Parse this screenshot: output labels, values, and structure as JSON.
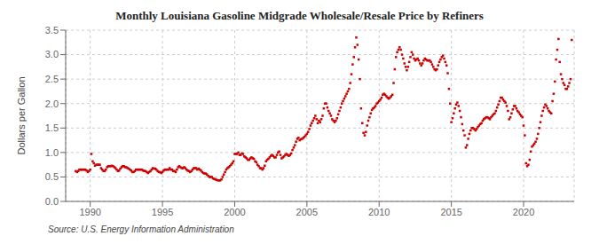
{
  "chart_data": {
    "type": "scatter",
    "title": "Monthly Louisiana Gasoline Midgrade Wholesale/Resale Price by Refiners",
    "y_label": "Dollars per Gallon",
    "annotations": [
      "Source: U.S. Energy Information Administration"
    ],
    "color": "#cc0000",
    "marker": "square",
    "grid": true,
    "xlim": [
      1988.3,
      2023.5
    ],
    "ylim": [
      0.0,
      3.5
    ],
    "xticks": [
      1990,
      1995,
      2000,
      2005,
      2010,
      2015,
      2020
    ],
    "yticks": [
      {
        "value": 0.0,
        "label": "0.0"
      },
      0.5,
      {
        "value": 1.0,
        "label": "1.0"
      },
      1.5,
      {
        "value": 2.0,
        "label": "2.0"
      },
      2.5,
      {
        "value": 3.0,
        "label": "3.0"
      },
      3.5
    ],
    "x": [
      1989.0,
      1989.083,
      1989.167,
      1989.25,
      1989.333,
      1989.417,
      1989.5,
      1989.583,
      1989.667,
      1989.75,
      1989.833,
      1989.917,
      1990.0,
      1990.083,
      1990.167,
      1990.25,
      1990.333,
      1990.417,
      1990.5,
      1990.583,
      1990.667,
      1990.75,
      1990.833,
      1990.917,
      1991.0,
      1991.083,
      1991.167,
      1991.25,
      1991.333,
      1991.417,
      1991.5,
      1991.583,
      1991.667,
      1991.75,
      1991.833,
      1991.917,
      1992.0,
      1992.083,
      1992.167,
      1992.25,
      1992.333,
      1992.417,
      1992.5,
      1992.583,
      1992.667,
      1992.75,
      1992.833,
      1992.917,
      1993.0,
      1993.083,
      1993.167,
      1993.25,
      1993.333,
      1993.417,
      1993.5,
      1993.583,
      1993.667,
      1993.75,
      1993.833,
      1993.917,
      1994.0,
      1994.083,
      1994.167,
      1994.25,
      1994.333,
      1994.417,
      1994.5,
      1994.583,
      1994.667,
      1994.75,
      1994.833,
      1994.917,
      1995.0,
      1995.083,
      1995.167,
      1995.25,
      1995.333,
      1995.417,
      1995.5,
      1995.583,
      1995.667,
      1995.75,
      1995.833,
      1995.917,
      1996.0,
      1996.083,
      1996.167,
      1996.25,
      1996.333,
      1996.417,
      1996.5,
      1996.583,
      1996.667,
      1996.75,
      1996.833,
      1996.917,
      1997.0,
      1997.083,
      1997.167,
      1997.25,
      1997.333,
      1997.417,
      1997.5,
      1997.583,
      1997.667,
      1997.75,
      1997.833,
      1997.917,
      1998.0,
      1998.083,
      1998.167,
      1998.25,
      1998.333,
      1998.417,
      1998.5,
      1998.583,
      1998.667,
      1998.75,
      1998.833,
      1998.917,
      1999.0,
      1999.083,
      1999.167,
      1999.25,
      1999.333,
      1999.417,
      1999.5,
      1999.583,
      1999.667,
      1999.75,
      1999.833,
      1999.917,
      2000.0,
      2000.083,
      2000.167,
      2000.25,
      2000.333,
      2000.417,
      2000.5,
      2000.583,
      2000.667,
      2000.75,
      2000.833,
      2000.917,
      2001.0,
      2001.083,
      2001.167,
      2001.25,
      2001.333,
      2001.417,
      2001.5,
      2001.583,
      2001.667,
      2001.75,
      2001.833,
      2001.917,
      2002.0,
      2002.083,
      2002.167,
      2002.25,
      2002.333,
      2002.417,
      2002.5,
      2002.583,
      2002.667,
      2002.75,
      2002.833,
      2002.917,
      2003.0,
      2003.083,
      2003.167,
      2003.25,
      2003.333,
      2003.417,
      2003.5,
      2003.583,
      2003.667,
      2003.75,
      2003.833,
      2003.917,
      2004.0,
      2004.083,
      2004.167,
      2004.25,
      2004.333,
      2004.417,
      2004.5,
      2004.583,
      2004.667,
      2004.75,
      2004.833,
      2004.917,
      2005.0,
      2005.083,
      2005.167,
      2005.25,
      2005.333,
      2005.417,
      2005.5,
      2005.583,
      2005.667,
      2005.75,
      2005.833,
      2005.917,
      2006.0,
      2006.083,
      2006.167,
      2006.25,
      2006.333,
      2006.417,
      2006.5,
      2006.583,
      2006.667,
      2006.75,
      2006.833,
      2006.917,
      2007.0,
      2007.083,
      2007.167,
      2007.25,
      2007.333,
      2007.417,
      2007.5,
      2007.583,
      2007.667,
      2007.75,
      2007.833,
      2007.917,
      2008.0,
      2008.083,
      2008.167,
      2008.25,
      2008.333,
      2008.417,
      2008.5,
      2008.583,
      2008.667,
      2008.75,
      2008.833,
      2008.917,
      2009.0,
      2009.083,
      2009.167,
      2009.25,
      2009.333,
      2009.417,
      2009.5,
      2009.583,
      2009.667,
      2009.75,
      2009.833,
      2009.917,
      2010.0,
      2010.083,
      2010.167,
      2010.25,
      2010.333,
      2010.417,
      2010.5,
      2010.583,
      2010.667,
      2010.75,
      2010.833,
      2010.917,
      2011.0,
      2011.083,
      2011.167,
      2011.25,
      2011.333,
      2011.417,
      2011.5,
      2011.583,
      2011.667,
      2011.75,
      2011.833,
      2011.917,
      2012.0,
      2012.083,
      2012.167,
      2012.25,
      2012.333,
      2012.417,
      2012.5,
      2012.583,
      2012.667,
      2012.75,
      2012.833,
      2012.917,
      2013.0,
      2013.083,
      2013.167,
      2013.25,
      2013.333,
      2013.417,
      2013.5,
      2013.583,
      2013.667,
      2013.75,
      2013.833,
      2013.917,
      2014.0,
      2014.083,
      2014.167,
      2014.25,
      2014.333,
      2014.417,
      2014.5,
      2014.583,
      2014.667,
      2014.75,
      2014.833,
      2014.917,
      2015.0,
      2015.083,
      2015.167,
      2015.25,
      2015.333,
      2015.417,
      2015.5,
      2015.583,
      2015.667,
      2015.75,
      2015.833,
      2015.917,
      2016.0,
      2016.083,
      2016.167,
      2016.25,
      2016.333,
      2016.417,
      2016.5,
      2016.583,
      2016.667,
      2016.75,
      2016.833,
      2016.917,
      2017.0,
      2017.083,
      2017.167,
      2017.25,
      2017.333,
      2017.417,
      2017.5,
      2017.583,
      2017.667,
      2017.75,
      2017.833,
      2017.917,
      2018.0,
      2018.083,
      2018.167,
      2018.25,
      2018.333,
      2018.417,
      2018.5,
      2018.583,
      2018.667,
      2018.75,
      2018.833,
      2018.917,
      2019.0,
      2019.083,
      2019.167,
      2019.25,
      2019.333,
      2019.417,
      2019.5,
      2019.583,
      2019.667,
      2019.75,
      2019.833,
      2019.917,
      2020.0,
      2020.083,
      2020.167,
      2020.25,
      2020.333,
      2020.417,
      2020.5,
      2020.583,
      2020.667,
      2020.75,
      2020.833,
      2020.917,
      2021.0,
      2021.083,
      2021.167,
      2021.25,
      2021.333,
      2021.417,
      2021.5,
      2021.583,
      2021.667,
      2021.75,
      2021.833,
      2021.917,
      2022.0,
      2022.083,
      2022.167,
      2022.25,
      2022.333,
      2022.417,
      2022.5,
      2022.583,
      2022.667,
      2022.75,
      2022.833,
      2022.917,
      2023.0,
      2023.083,
      2023.167,
      2023.25,
      2023.333
    ],
    "values": [
      0.62,
      0.6,
      0.62,
      0.65,
      0.65,
      0.65,
      0.65,
      0.65,
      0.65,
      0.63,
      0.6,
      0.62,
      0.65,
      0.97,
      0.82,
      0.78,
      0.73,
      0.75,
      0.75,
      0.75,
      0.75,
      0.68,
      0.65,
      0.62,
      0.62,
      0.65,
      0.7,
      0.72,
      0.72,
      0.72,
      0.73,
      0.72,
      0.7,
      0.68,
      0.65,
      0.62,
      0.63,
      0.67,
      0.7,
      0.72,
      0.72,
      0.7,
      0.7,
      0.68,
      0.67,
      0.65,
      0.63,
      0.6,
      0.6,
      0.62,
      0.65,
      0.65,
      0.65,
      0.65,
      0.65,
      0.65,
      0.63,
      0.62,
      0.62,
      0.6,
      0.58,
      0.6,
      0.62,
      0.65,
      0.68,
      0.67,
      0.67,
      0.65,
      0.62,
      0.6,
      0.6,
      0.58,
      0.6,
      0.63,
      0.65,
      0.65,
      0.65,
      0.65,
      0.68,
      0.65,
      0.65,
      0.62,
      0.62,
      0.6,
      0.65,
      0.7,
      0.72,
      0.7,
      0.68,
      0.68,
      0.7,
      0.68,
      0.65,
      0.63,
      0.62,
      0.6,
      0.62,
      0.65,
      0.68,
      0.68,
      0.68,
      0.65,
      0.67,
      0.65,
      0.63,
      0.6,
      0.58,
      0.57,
      0.57,
      0.55,
      0.52,
      0.5,
      0.5,
      0.5,
      0.47,
      0.46,
      0.45,
      0.44,
      0.43,
      0.43,
      0.43,
      0.45,
      0.5,
      0.55,
      0.6,
      0.65,
      0.68,
      0.7,
      0.72,
      0.75,
      0.78,
      0.82,
      0.97,
      0.97,
      0.97,
      1.0,
      0.95,
      0.95,
      0.98,
      0.97,
      0.92,
      0.9,
      0.88,
      0.85,
      0.85,
      0.88,
      0.9,
      0.88,
      0.87,
      0.82,
      0.8,
      0.75,
      0.72,
      0.68,
      0.68,
      0.65,
      0.68,
      0.73,
      0.82,
      0.85,
      0.87,
      0.9,
      0.93,
      0.95,
      0.93,
      0.9,
      0.9,
      0.95,
      1.0,
      1.02,
      0.95,
      0.88,
      0.9,
      0.92,
      0.95,
      0.97,
      0.95,
      0.93,
      0.95,
      0.98,
      1.05,
      1.1,
      1.15,
      1.22,
      1.28,
      1.3,
      1.25,
      1.27,
      1.28,
      1.3,
      1.32,
      1.35,
      1.38,
      1.42,
      1.48,
      1.55,
      1.6,
      1.65,
      1.7,
      1.75,
      1.68,
      1.6,
      1.65,
      1.62,
      1.68,
      1.75,
      1.9,
      2.0,
      2.0,
      1.92,
      1.85,
      1.8,
      1.75,
      1.68,
      1.65,
      1.62,
      1.65,
      1.7,
      1.78,
      1.85,
      1.92,
      2.0,
      2.05,
      2.1,
      2.15,
      2.2,
      2.25,
      2.3,
      2.42,
      2.6,
      2.8,
      2.95,
      3.15,
      3.35,
      3.2,
      2.9,
      2.5,
      1.9,
      1.6,
      1.4,
      1.35,
      1.42,
      1.55,
      1.65,
      1.72,
      1.8,
      1.87,
      1.9,
      1.92,
      1.95,
      2.0,
      2.02,
      2.05,
      2.08,
      2.12,
      2.18,
      2.2,
      2.18,
      2.15,
      2.12,
      2.1,
      2.12,
      2.15,
      2.18,
      2.42,
      2.7,
      2.95,
      3.05,
      3.1,
      3.15,
      3.1,
      3.0,
      2.92,
      2.82,
      2.75,
      2.68,
      2.75,
      2.85,
      2.95,
      3.05,
      3.0,
      2.92,
      2.88,
      2.9,
      2.92,
      2.88,
      2.82,
      2.78,
      2.82,
      2.88,
      2.92,
      2.9,
      2.88,
      2.88,
      2.88,
      2.85,
      2.8,
      2.75,
      2.7,
      2.68,
      2.7,
      2.78,
      2.85,
      2.9,
      2.95,
      2.98,
      2.92,
      2.85,
      2.78,
      2.62,
      2.3,
      2.0,
      1.62,
      1.7,
      1.8,
      1.9,
      1.98,
      2.02,
      1.95,
      1.85,
      1.72,
      1.58,
      1.45,
      1.35,
      1.1,
      1.15,
      1.28,
      1.38,
      1.45,
      1.5,
      1.5,
      1.48,
      1.45,
      1.48,
      1.52,
      1.55,
      1.58,
      1.6,
      1.65,
      1.68,
      1.7,
      1.72,
      1.72,
      1.7,
      1.68,
      1.72,
      1.75,
      1.78,
      1.8,
      1.85,
      1.92,
      1.98,
      2.05,
      2.12,
      2.12,
      2.08,
      2.05,
      2.02,
      1.95,
      1.85,
      1.68,
      1.72,
      1.8,
      1.88,
      1.95,
      1.95,
      1.9,
      1.85,
      1.82,
      1.78,
      1.75,
      1.72,
      1.55,
      1.35,
      0.78,
      0.72,
      0.75,
      0.85,
      1.02,
      1.12,
      1.15,
      1.18,
      1.22,
      1.28,
      1.38,
      1.5,
      1.62,
      1.75,
      1.85,
      1.92,
      1.98,
      1.95,
      1.9,
      1.85,
      1.82,
      1.8,
      2.05,
      2.2,
      2.45,
      2.9,
      3.1,
      3.32,
      2.85,
      2.6,
      2.5,
      2.42,
      2.38,
      2.3,
      2.3,
      2.35,
      2.42,
      2.5,
      3.3
    ]
  }
}
